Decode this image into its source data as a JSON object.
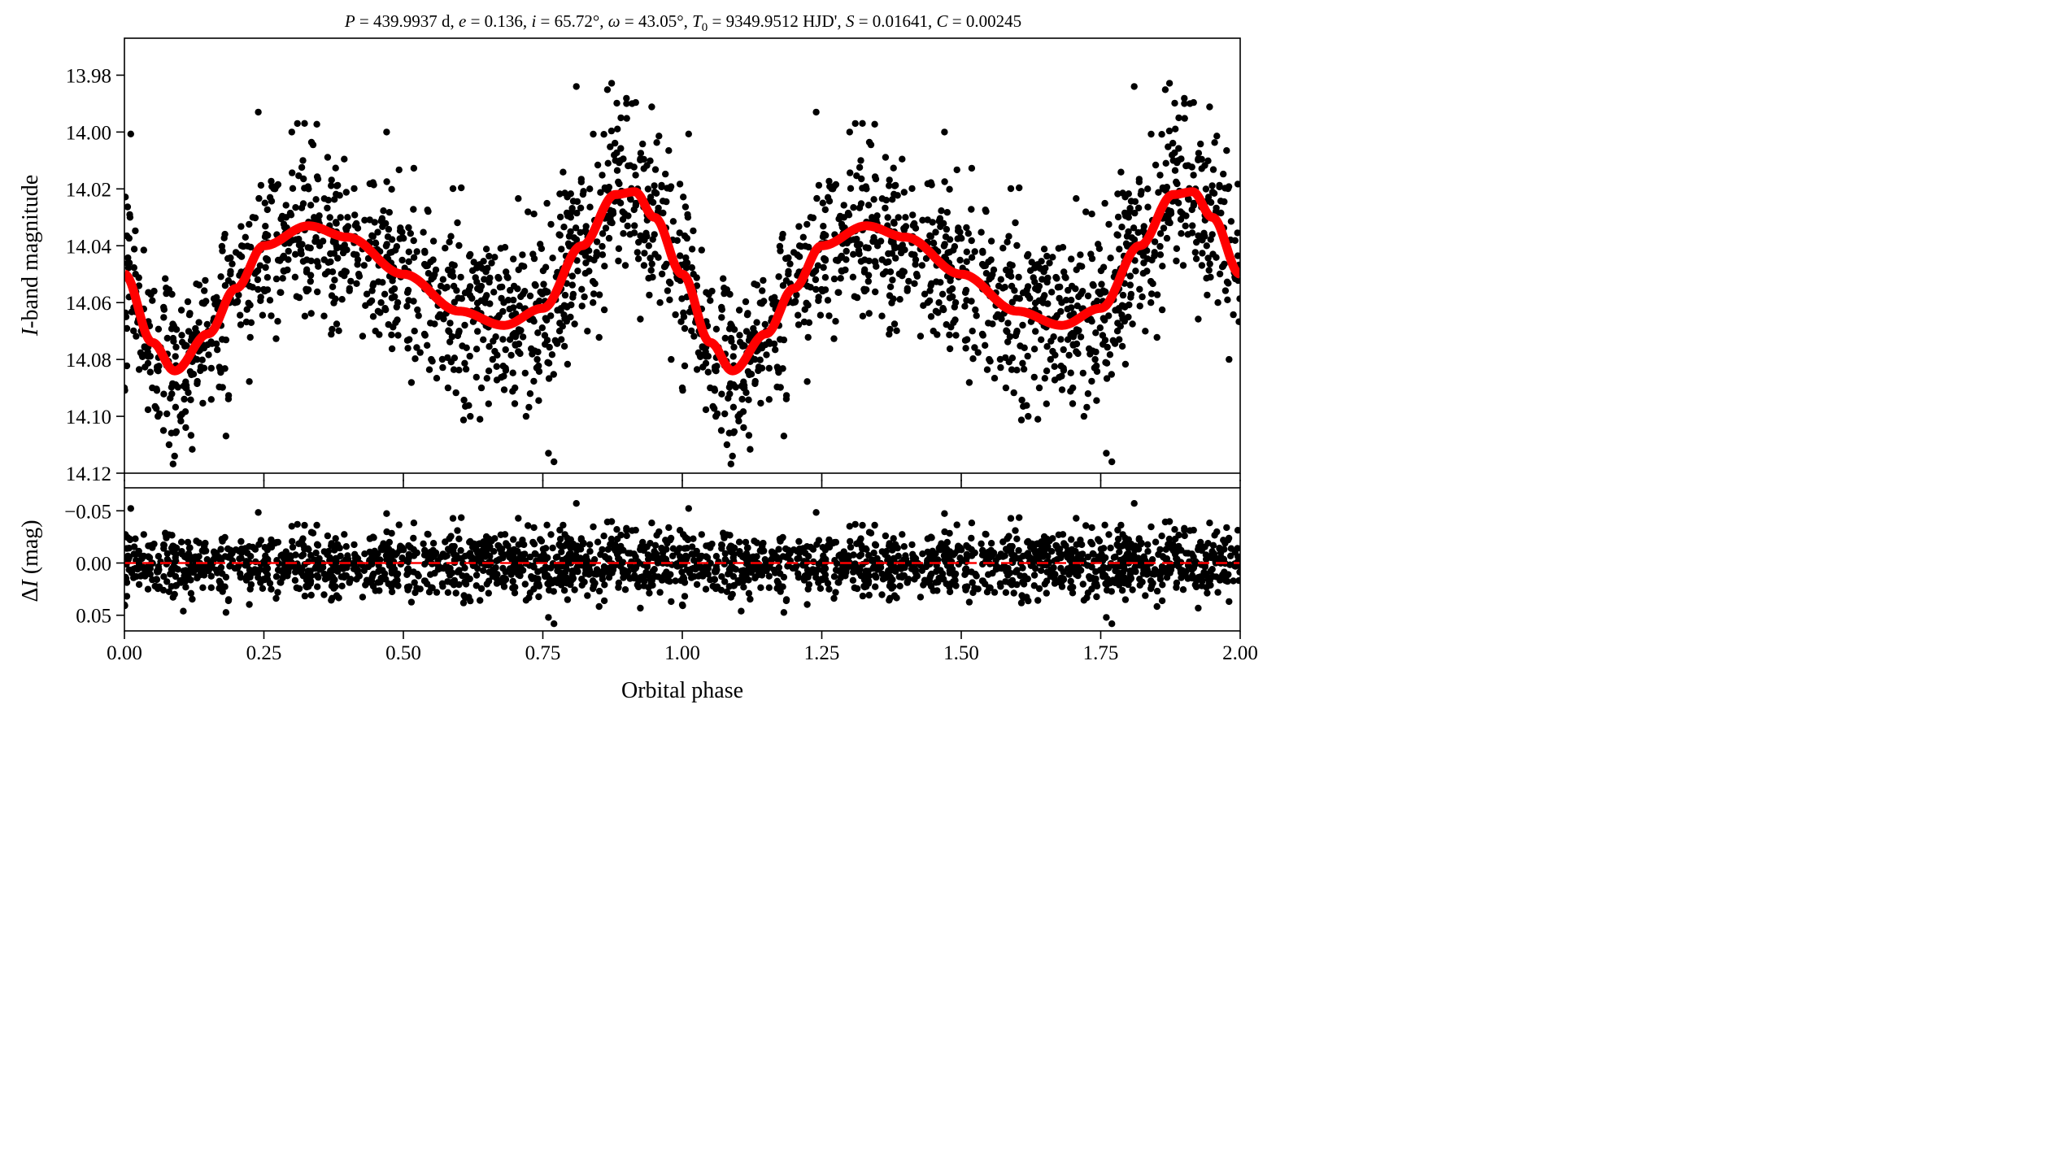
{
  "chart_data": [
    {
      "type": "scatter",
      "panel": "top",
      "title": "P = 439.9937 d, e = 0.136, i = 65.72°, ω = 43.05°, T0 = 9349.9512 HJD', S = 0.01641, C = 0.00245",
      "title_parts": {
        "p_sym": "P",
        "p_val": " = 439.9937 d, ",
        "e_sym": "e",
        "e_val": " = 0.136, ",
        "i_sym": "i",
        "i_val": " = 65.72°, ",
        "w_sym": "ω",
        "w_val": " = 43.05°, ",
        "t_sym": "T",
        "t_sub": "0",
        "t_val": " = 9349.9512 HJD', ",
        "s_sym": "S",
        "s_val": " = 0.01641, ",
        "c_sym": "C",
        "c_val": " = 0.00245"
      },
      "ylabel_italic": "I",
      "ylabel_rest": "-band magnitude",
      "ylim": [
        13.967,
        14.12
      ],
      "y_inverted": true,
      "yticks": [
        "13.98",
        "14.00",
        "14.02",
        "14.04",
        "14.06",
        "14.08",
        "14.10",
        "14.12"
      ],
      "xlim": [
        0,
        2
      ],
      "series": [
        {
          "kind": "points",
          "color": "#000000",
          "x": [
            0.01,
            0.02,
            0.03,
            0.05,
            0.06,
            0.07,
            0.08,
            0.09,
            0.1,
            0.11,
            0.13,
            0.15,
            0.17,
            0.19,
            0.21,
            0.23,
            0.24,
            0.25,
            0.27,
            0.29,
            0.3,
            0.31,
            0.32,
            0.33,
            0.34,
            0.35,
            0.36,
            0.38,
            0.4,
            0.42,
            0.44,
            0.45,
            0.46,
            0.47,
            0.48,
            0.49,
            0.52,
            0.55,
            0.58,
            0.6,
            0.62,
            0.64,
            0.66,
            0.68,
            0.7,
            0.72,
            0.74,
            0.76,
            0.77,
            0.78,
            0.8,
            0.81,
            0.82,
            0.84,
            0.86,
            0.88,
            0.89,
            0.9,
            0.91,
            0.92,
            0.94,
            0.96,
            0.98,
            1.0
          ],
          "y": [
            14.03,
            14.05,
            14.07,
            14.09,
            14.1,
            14.105,
            14.11,
            14.114,
            14.1,
            14.09,
            14.08,
            14.07,
            14.06,
            14.05,
            14.04,
            14.03,
            13.993,
            14.04,
            14.02,
            14.03,
            14.0,
            13.997,
            14.01,
            14.02,
            14.03,
            14.04,
            14.05,
            14.04,
            14.03,
            14.05,
            14.06,
            14.07,
            14.06,
            14.0,
            14.05,
            14.06,
            14.07,
            14.08,
            14.09,
            14.07,
            14.1,
            14.09,
            14.08,
            14.06,
            14.09,
            14.1,
            14.08,
            14.113,
            14.116,
            14.07,
            14.03,
            13.984,
            14.04,
            14.06,
            14.03,
            14.01,
            13.995,
            13.99,
            13.99,
            14.02,
            14.04,
            14.06,
            14.08,
            14.09
          ]
        },
        {
          "kind": "fit",
          "color": "#ff0000",
          "x": [
            0.0,
            0.05,
            0.09,
            0.15,
            0.2,
            0.25,
            0.33,
            0.4,
            0.5,
            0.6,
            0.68,
            0.75,
            0.82,
            0.88,
            0.915,
            0.95,
            1.0
          ],
          "y": [
            14.05,
            14.074,
            14.084,
            14.071,
            14.055,
            14.04,
            14.033,
            14.037,
            14.05,
            14.063,
            14.068,
            14.062,
            14.04,
            14.022,
            14.021,
            14.03,
            14.05
          ]
        }
      ]
    },
    {
      "type": "scatter",
      "panel": "bottom",
      "xlabel": "Orbital phase",
      "ylabel_prefix": "Δ",
      "ylabel_italic": "I",
      "ylabel_rest": " (mag)",
      "ylim": [
        -0.072,
        0.065
      ],
      "y_inverted": true,
      "yticks": [
        "−0.05",
        "0.00",
        "0.05"
      ],
      "xlim": [
        0,
        2
      ],
      "xticks": [
        "0.00",
        "0.25",
        "0.50",
        "0.75",
        "1.00",
        "1.25",
        "1.50",
        "1.75",
        "2.00"
      ],
      "series": [
        {
          "kind": "residuals",
          "color": "#000000",
          "scatter": 0.015
        },
        {
          "kind": "zero_line",
          "color": "#ff0000",
          "y": 0.0,
          "style": "dashed"
        }
      ]
    }
  ]
}
